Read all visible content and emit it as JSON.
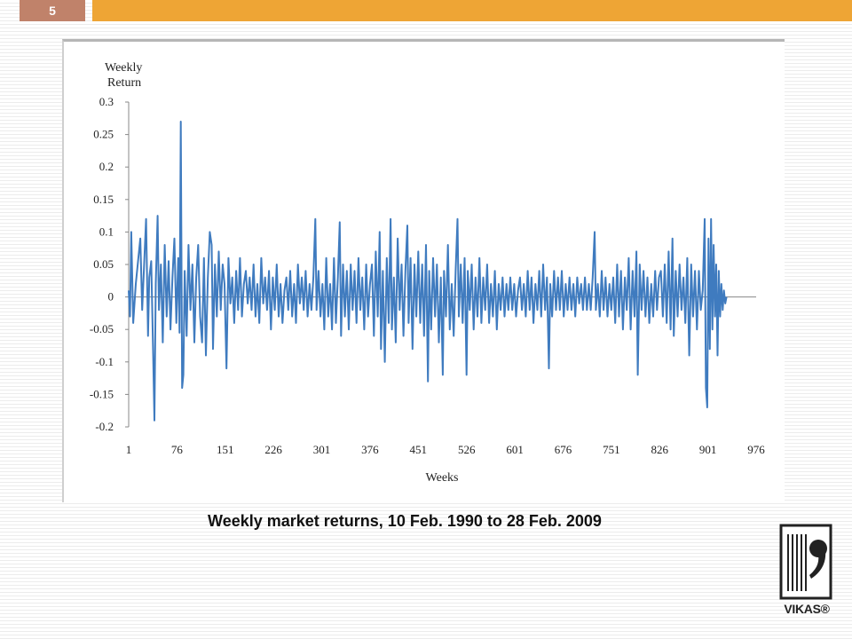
{
  "slide": {
    "page_number": "5",
    "caption": "Weekly market returns, 10 Feb. 1990 to 28 Feb. 2009",
    "logo_text": "VIKAS®",
    "accent_color": "#eea535",
    "page_box_color": "#c0826a"
  },
  "chart_data": {
    "type": "line",
    "ylabel_line1": "Weekly",
    "ylabel_line2": "Return",
    "xlabel": "Weeks",
    "ylim": [
      -0.2,
      0.3
    ],
    "y_ticks": [
      "0.3",
      "0.25",
      "0.2",
      "0.15",
      "0.1",
      "0.05",
      "0",
      "-0.05",
      "-0.1",
      "-0.15",
      "-0.2"
    ],
    "x_ticks": [
      "1",
      "76",
      "151",
      "226",
      "301",
      "376",
      "451",
      "526",
      "601",
      "676",
      "751",
      "826",
      "901",
      "976"
    ],
    "xlim": [
      1,
      976
    ],
    "grid": false,
    "series_color": "#3f7bbf",
    "peaks": [
      [
        1,
        0.01
      ],
      [
        3,
        -0.03
      ],
      [
        5,
        0.1
      ],
      [
        8,
        -0.04
      ],
      [
        12,
        0.02
      ],
      [
        16,
        0.06
      ],
      [
        19,
        0.09
      ],
      [
        22,
        -0.02
      ],
      [
        25,
        0.05
      ],
      [
        28,
        0.12
      ],
      [
        31,
        -0.06
      ],
      [
        33,
        0.03
      ],
      [
        36,
        0.055
      ],
      [
        39,
        -0.09
      ],
      [
        41,
        -0.19
      ],
      [
        43,
        0.02
      ],
      [
        46,
        0.125
      ],
      [
        48,
        -0.02
      ],
      [
        51,
        0.05
      ],
      [
        54,
        -0.07
      ],
      [
        57,
        0.08
      ],
      [
        60,
        -0.03
      ],
      [
        63,
        0.055
      ],
      [
        66,
        -0.05
      ],
      [
        69,
        0.03
      ],
      [
        72,
        0.09
      ],
      [
        75,
        -0.04
      ],
      [
        78,
        0.06
      ],
      [
        80,
        -0.055
      ],
      [
        82,
        0.27
      ],
      [
        84,
        -0.14
      ],
      [
        86,
        -0.12
      ],
      [
        88,
        0.04
      ],
      [
        91,
        -0.06
      ],
      [
        94,
        0.08
      ],
      [
        97,
        -0.02
      ],
      [
        100,
        0.05
      ],
      [
        103,
        -0.07
      ],
      [
        106,
        0.03
      ],
      [
        109,
        0.08
      ],
      [
        112,
        -0.03
      ],
      [
        115,
        -0.07
      ],
      [
        118,
        0.06
      ],
      [
        121,
        -0.09
      ],
      [
        124,
        0.03
      ],
      [
        127,
        0.1
      ],
      [
        130,
        0.08
      ],
      [
        132,
        -0.08
      ],
      [
        135,
        0.05
      ],
      [
        138,
        -0.03
      ],
      [
        141,
        0.07
      ],
      [
        144,
        -0.02
      ],
      [
        147,
        0.05
      ],
      [
        150,
        0.02
      ],
      [
        153,
        -0.11
      ],
      [
        156,
        0.06
      ],
      [
        159,
        -0.01
      ],
      [
        162,
        0.03
      ],
      [
        165,
        -0.04
      ],
      [
        168,
        0.04
      ],
      [
        171,
        -0.02
      ],
      [
        174,
        0.06
      ],
      [
        177,
        -0.03
      ],
      [
        180,
        0.02
      ],
      [
        183,
        0.04
      ],
      [
        186,
        -0.01
      ],
      [
        189,
        0.03
      ],
      [
        192,
        -0.02
      ],
      [
        195,
        0.05
      ],
      [
        198,
        -0.03
      ],
      [
        201,
        0.02
      ],
      [
        204,
        -0.04
      ],
      [
        207,
        0.06
      ],
      [
        210,
        -0.01
      ],
      [
        213,
        0.03
      ],
      [
        216,
        -0.02
      ],
      [
        219,
        0.04
      ],
      [
        222,
        -0.05
      ],
      [
        225,
        0.03
      ],
      [
        228,
        -0.02
      ],
      [
        231,
        0.05
      ],
      [
        234,
        -0.03
      ],
      [
        237,
        0.02
      ],
      [
        240,
        -0.04
      ],
      [
        243,
        0.01
      ],
      [
        246,
        0.03
      ],
      [
        249,
        -0.02
      ],
      [
        252,
        0.04
      ],
      [
        255,
        -0.03
      ],
      [
        258,
        0.02
      ],
      [
        261,
        -0.04
      ],
      [
        264,
        0.05
      ],
      [
        267,
        -0.01
      ],
      [
        270,
        0.03
      ],
      [
        273,
        -0.02
      ],
      [
        276,
        0.04
      ],
      [
        279,
        -0.03
      ],
      [
        282,
        0.02
      ],
      [
        285,
        -0.02
      ],
      [
        288,
        0.03
      ],
      [
        291,
        0.12
      ],
      [
        293,
        -0.02
      ],
      [
        296,
        0.04
      ],
      [
        299,
        -0.03
      ],
      [
        302,
        0.02
      ],
      [
        305,
        -0.05
      ],
      [
        308,
        0.06
      ],
      [
        311,
        -0.03
      ],
      [
        314,
        0.02
      ],
      [
        317,
        -0.05
      ],
      [
        320,
        0.06
      ],
      [
        323,
        -0.04
      ],
      [
        326,
        0.03
      ],
      [
        329,
        0.115
      ],
      [
        331,
        -0.06
      ],
      [
        334,
        0.05
      ],
      [
        337,
        -0.03
      ],
      [
        340,
        0.04
      ],
      [
        343,
        -0.05
      ],
      [
        346,
        0.05
      ],
      [
        349,
        -0.02
      ],
      [
        352,
        0.04
      ],
      [
        355,
        -0.04
      ],
      [
        358,
        0.06
      ],
      [
        361,
        -0.02
      ],
      [
        364,
        0.03
      ],
      [
        367,
        -0.05
      ],
      [
        370,
        0.05
      ],
      [
        373,
        -0.03
      ],
      [
        376,
        0.02
      ],
      [
        379,
        0.05
      ],
      [
        382,
        -0.06
      ],
      [
        385,
        0.07
      ],
      [
        388,
        -0.03
      ],
      [
        391,
        0.1
      ],
      [
        393,
        -0.08
      ],
      [
        396,
        0.04
      ],
      [
        399,
        -0.1
      ],
      [
        402,
        0.06
      ],
      [
        405,
        -0.04
      ],
      [
        408,
        0.12
      ],
      [
        410,
        -0.05
      ],
      [
        413,
        0.03
      ],
      [
        416,
        -0.07
      ],
      [
        419,
        0.09
      ],
      [
        422,
        -0.02
      ],
      [
        425,
        0.05
      ],
      [
        428,
        -0.06
      ],
      [
        431,
        0.04
      ],
      [
        434,
        0.11
      ],
      [
        436,
        -0.04
      ],
      [
        439,
        0.06
      ],
      [
        442,
        -0.08
      ],
      [
        445,
        0.05
      ],
      [
        448,
        -0.03
      ],
      [
        451,
        0.07
      ],
      [
        454,
        -0.04
      ],
      [
        457,
        0.05
      ],
      [
        460,
        -0.06
      ],
      [
        463,
        0.08
      ],
      [
        466,
        -0.13
      ],
      [
        468,
        0.04
      ],
      [
        471,
        -0.05
      ],
      [
        474,
        0.06
      ],
      [
        477,
        -0.03
      ],
      [
        480,
        0.05
      ],
      [
        483,
        -0.07
      ],
      [
        486,
        0.03
      ],
      [
        489,
        -0.12
      ],
      [
        491,
        0.04
      ],
      [
        494,
        -0.03
      ],
      [
        497,
        0.08
      ],
      [
        500,
        -0.05
      ],
      [
        503,
        0.02
      ],
      [
        506,
        -0.06
      ],
      [
        509,
        0.04
      ],
      [
        512,
        0.12
      ],
      [
        514,
        -0.03
      ],
      [
        517,
        0.05
      ],
      [
        520,
        -0.04
      ],
      [
        523,
        0.06
      ],
      [
        526,
        -0.12
      ],
      [
        528,
        0.04
      ],
      [
        531,
        -0.02
      ],
      [
        534,
        0.05
      ],
      [
        537,
        -0.05
      ],
      [
        540,
        0.03
      ],
      [
        543,
        -0.03
      ],
      [
        546,
        0.06
      ],
      [
        549,
        -0.04
      ],
      [
        552,
        0.03
      ],
      [
        555,
        -0.02
      ],
      [
        558,
        0.05
      ],
      [
        561,
        -0.04
      ],
      [
        564,
        0.02
      ],
      [
        567,
        -0.03
      ],
      [
        570,
        0.04
      ],
      [
        573,
        -0.05
      ],
      [
        576,
        0.02
      ],
      [
        579,
        -0.02
      ],
      [
        582,
        0.03
      ],
      [
        585,
        -0.03
      ],
      [
        588,
        0.02
      ],
      [
        591,
        -0.02
      ],
      [
        594,
        0.03
      ],
      [
        597,
        -0.02
      ],
      [
        600,
        0.02
      ],
      [
        603,
        -0.03
      ],
      [
        606,
        0.01
      ],
      [
        609,
        0.03
      ],
      [
        612,
        -0.02
      ],
      [
        615,
        0.02
      ],
      [
        618,
        -0.03
      ],
      [
        621,
        0.04
      ],
      [
        624,
        -0.02
      ],
      [
        627,
        0.03
      ],
      [
        630,
        -0.04
      ],
      [
        633,
        0.02
      ],
      [
        636,
        -0.02
      ],
      [
        639,
        0.04
      ],
      [
        642,
        -0.03
      ],
      [
        645,
        0.05
      ],
      [
        648,
        -0.02
      ],
      [
        651,
        0.03
      ],
      [
        654,
        -0.11
      ],
      [
        656,
        0.02
      ],
      [
        659,
        -0.03
      ],
      [
        662,
        0.04
      ],
      [
        665,
        -0.02
      ],
      [
        668,
        0.03
      ],
      [
        671,
        -0.02
      ],
      [
        674,
        0.04
      ],
      [
        677,
        -0.03
      ],
      [
        680,
        0.02
      ],
      [
        683,
        -0.02
      ],
      [
        686,
        0.03
      ],
      [
        689,
        -0.02
      ],
      [
        692,
        0.02
      ],
      [
        695,
        -0.03
      ],
      [
        698,
        0.03
      ],
      [
        701,
        -0.01
      ],
      [
        704,
        0.02
      ],
      [
        707,
        -0.02
      ],
      [
        710,
        0.03
      ],
      [
        713,
        -0.02
      ],
      [
        716,
        0.02
      ],
      [
        719,
        -0.02
      ],
      [
        722,
        0.03
      ],
      [
        725,
        0.1
      ],
      [
        727,
        -0.02
      ],
      [
        730,
        0.02
      ],
      [
        733,
        -0.03
      ],
      [
        736,
        0.04
      ],
      [
        739,
        -0.02
      ],
      [
        742,
        0.03
      ],
      [
        745,
        -0.03
      ],
      [
        748,
        0.02
      ],
      [
        751,
        -0.02
      ],
      [
        754,
        0.03
      ],
      [
        757,
        -0.04
      ],
      [
        760,
        0.05
      ],
      [
        763,
        -0.03
      ],
      [
        766,
        0.04
      ],
      [
        769,
        -0.05
      ],
      [
        772,
        0.03
      ],
      [
        775,
        -0.02
      ],
      [
        778,
        0.06
      ],
      [
        781,
        -0.05
      ],
      [
        784,
        0.04
      ],
      [
        787,
        -0.03
      ],
      [
        790,
        0.07
      ],
      [
        792,
        -0.12
      ],
      [
        795,
        0.05
      ],
      [
        798,
        -0.02
      ],
      [
        801,
        0.04
      ],
      [
        804,
        -0.03
      ],
      [
        807,
        0.03
      ],
      [
        810,
        -0.04
      ],
      [
        813,
        0.02
      ],
      [
        816,
        -0.03
      ],
      [
        819,
        0.04
      ],
      [
        822,
        -0.02
      ],
      [
        825,
        0.03
      ],
      [
        828,
        0.04
      ],
      [
        831,
        -0.03
      ],
      [
        834,
        0.05
      ],
      [
        837,
        -0.04
      ],
      [
        840,
        0.07
      ],
      [
        843,
        -0.05
      ],
      [
        846,
        0.09
      ],
      [
        848,
        -0.06
      ],
      [
        851,
        0.04
      ],
      [
        854,
        -0.03
      ],
      [
        857,
        0.05
      ],
      [
        860,
        -0.02
      ],
      [
        863,
        0.03
      ],
      [
        866,
        -0.04
      ],
      [
        869,
        0.06
      ],
      [
        872,
        -0.09
      ],
      [
        875,
        0.05
      ],
      [
        878,
        -0.03
      ],
      [
        881,
        0.04
      ],
      [
        884,
        -0.05
      ],
      [
        887,
        0.04
      ],
      [
        890,
        -0.02
      ],
      [
        893,
        0.01
      ],
      [
        896,
        0.12
      ],
      [
        898,
        -0.14
      ],
      [
        900,
        -0.17
      ],
      [
        902,
        0.09
      ],
      [
        904,
        -0.08
      ],
      [
        906,
        0.12
      ],
      [
        908,
        -0.05
      ],
      [
        910,
        0.08
      ],
      [
        912,
        -0.03
      ],
      [
        914,
        0.05
      ],
      [
        916,
        -0.09
      ],
      [
        918,
        0.04
      ],
      [
        920,
        -0.03
      ],
      [
        922,
        0.02
      ],
      [
        924,
        -0.02
      ],
      [
        926,
        0.01
      ],
      [
        928,
        -0.01
      ],
      [
        930,
        0.0
      ]
    ]
  }
}
